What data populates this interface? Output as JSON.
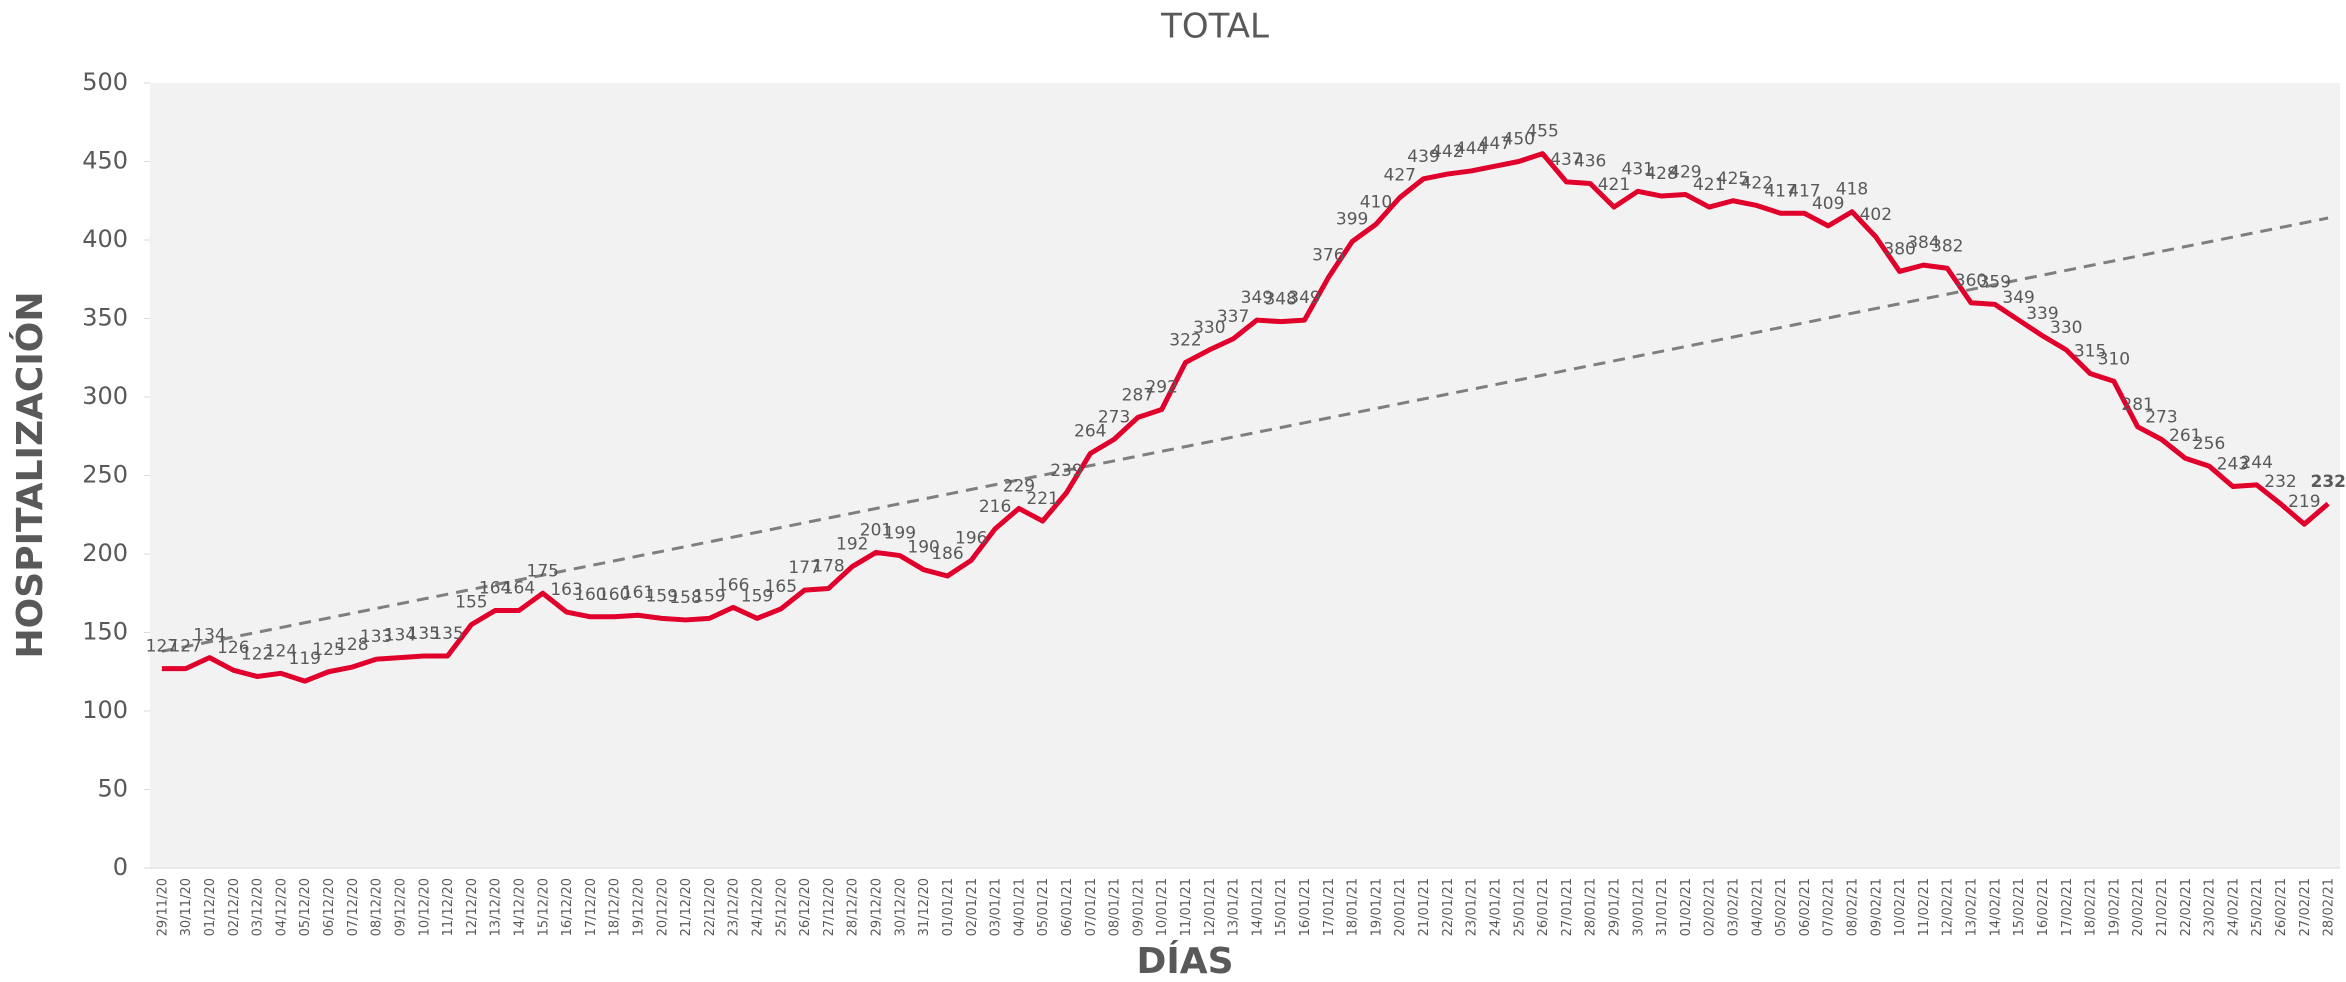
{
  "chart_data": {
    "type": "line",
    "title": "TOTAL",
    "y_label": "HOSPITALIZACIÓN",
    "x_label": "DÍAS",
    "categories": [
      "29/11/20",
      "30/11/20",
      "01/12/20",
      "02/12/20",
      "03/12/20",
      "04/12/20",
      "05/12/20",
      "06/12/20",
      "07/12/20",
      "08/12/20",
      "09/12/20",
      "10/12/20",
      "11/12/20",
      "12/12/20",
      "13/12/20",
      "14/12/20",
      "15/12/20",
      "16/12/20",
      "17/12/20",
      "18/12/20",
      "19/12/20",
      "20/12/20",
      "21/12/20",
      "22/12/20",
      "23/12/20",
      "24/12/20",
      "25/12/20",
      "26/12/20",
      "27/12/20",
      "28/12/20",
      "29/12/20",
      "30/12/20",
      "31/12/20",
      "01/01/21",
      "02/01/21",
      "03/01/21",
      "04/01/21",
      "05/01/21",
      "06/01/21",
      "07/01/21",
      "08/01/21",
      "09/01/21",
      "10/01/21",
      "11/01/21",
      "12/01/21",
      "13/01/21",
      "14/01/21",
      "15/01/21",
      "16/01/21",
      "17/01/21",
      "18/01/21",
      "19/01/21",
      "20/01/21",
      "21/01/21",
      "22/01/21",
      "23/01/21",
      "24/01/21",
      "25/01/21",
      "26/01/21",
      "27/01/21",
      "28/01/21",
      "29/01/21",
      "30/01/21",
      "31/01/21",
      "01/02/21",
      "02/02/21",
      "03/02/21",
      "04/02/21",
      "05/02/21",
      "06/02/21",
      "07/02/21",
      "08/02/21",
      "09/02/21",
      "10/02/21",
      "11/02/21",
      "12/02/21",
      "13/02/21",
      "14/02/21",
      "15/02/21",
      "16/02/21",
      "17/02/21",
      "18/02/21",
      "19/02/21",
      "20/02/21",
      "21/02/21",
      "22/02/21",
      "23/02/21",
      "24/02/21",
      "25/02/21",
      "26/02/21",
      "27/02/21",
      "28/02/21"
    ],
    "values": [
      127,
      127,
      134,
      126,
      122,
      124,
      119,
      125,
      128,
      133,
      134,
      135,
      135,
      155,
      164,
      164,
      175,
      163,
      160,
      160,
      161,
      159,
      158,
      159,
      166,
      159,
      165,
      177,
      178,
      192,
      201,
      199,
      190,
      186,
      196,
      216,
      229,
      221,
      239,
      264,
      273,
      287,
      292,
      322,
      330,
      337,
      349,
      348,
      349,
      376,
      399,
      410,
      427,
      439,
      442,
      444,
      447,
      450,
      455,
      437,
      436,
      421,
      431,
      428,
      429,
      421,
      425,
      422,
      417,
      417,
      409,
      418,
      402,
      380,
      384,
      382,
      360,
      359,
      349,
      339,
      330,
      315,
      310,
      281,
      273,
      261,
      256,
      243,
      244,
      232,
      219,
      232
    ],
    "color": "#e0002b",
    "trendline": {
      "x": [
        "29/11/20",
        "28/02/21"
      ],
      "values": [
        138,
        414
      ],
      "color": "#7f7f7f"
    },
    "ylim": [
      0,
      500
    ],
    "yticks": [
      0,
      50,
      100,
      150,
      200,
      250,
      300,
      350,
      400,
      450,
      500
    ]
  }
}
